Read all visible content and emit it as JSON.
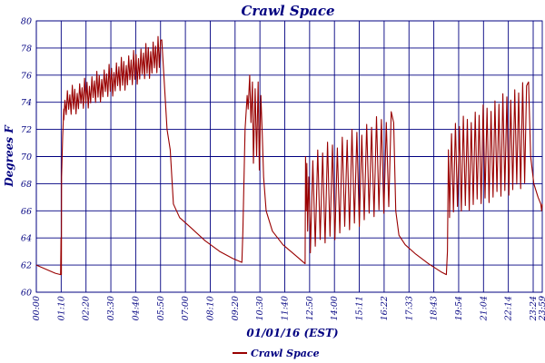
{
  "chart_data": {
    "type": "line",
    "title": "Crawl Space",
    "xlabel": "01/01/16 (EST)",
    "ylabel": "Degrees F",
    "ylim": [
      60,
      80
    ],
    "y_ticks": [
      "60",
      "62",
      "64",
      "66",
      "68",
      "70",
      "72",
      "74",
      "76",
      "78",
      "80"
    ],
    "x_ticks": [
      "00:00",
      "01:10",
      "02:20",
      "03:30",
      "04:40",
      "05:50",
      "07:00",
      "08:10",
      "09:20",
      "10:30",
      "11:40",
      "12:50",
      "14:00",
      "15:11",
      "16:22",
      "17:33",
      "18:43",
      "19:54",
      "21:04",
      "22:14",
      "23:24",
      "23:59"
    ],
    "x_unit": "hours",
    "xlim": [
      0,
      24
    ],
    "grid": true,
    "legend_position": "bottom-left",
    "series": [
      {
        "name": "Crawl Space",
        "color": "#990000",
        "segments": [
          {
            "kind": "points",
            "points": [
              [
                0,
                62.0
              ],
              [
                0.3,
                61.8
              ],
              [
                0.6,
                61.6
              ],
              [
                0.9,
                61.4
              ],
              [
                1.15,
                61.3
              ],
              [
                1.17,
                64.0
              ],
              [
                1.19,
                61.3
              ],
              [
                1.2,
                68.5
              ],
              [
                1.25,
                71.5
              ],
              [
                1.3,
                73.5
              ]
            ]
          },
          {
            "kind": "oscillate",
            "t0": 1.3,
            "t1": 5.95,
            "count": 40,
            "lo0": 73.0,
            "lo1": 76.5,
            "hi0": 74.5,
            "hi1": 78.6
          },
          {
            "kind": "points",
            "points": [
              [
                5.95,
                78.6
              ],
              [
                6.05,
                76.0
              ],
              [
                6.2,
                72.0
              ],
              [
                6.35,
                70.5
              ],
              [
                6.5,
                66.5
              ],
              [
                6.8,
                65.5
              ],
              [
                7.3,
                64.8
              ],
              [
                8.0,
                63.8
              ],
              [
                8.7,
                63.0
              ],
              [
                9.3,
                62.5
              ],
              [
                9.75,
                62.2
              ]
            ]
          },
          {
            "kind": "points",
            "points": [
              [
                9.8,
                64.5
              ],
              [
                9.9,
                72.0
              ],
              [
                10.0,
                74.5
              ],
              [
                10.05,
                73.5
              ],
              [
                10.12,
                76.0
              ],
              [
                10.18,
                72.5
              ],
              [
                10.25,
                75.5
              ],
              [
                10.3,
                69.5
              ],
              [
                10.38,
                75.0
              ],
              [
                10.45,
                70.0
              ],
              [
                10.52,
                75.5
              ],
              [
                10.58,
                69.0
              ],
              [
                10.65,
                74.5
              ],
              [
                10.72,
                71.5
              ],
              [
                10.78,
                68.5
              ],
              [
                10.9,
                66.0
              ],
              [
                11.2,
                64.5
              ],
              [
                11.7,
                63.5
              ],
              [
                12.3,
                62.7
              ],
              [
                12.75,
                62.1
              ]
            ]
          },
          {
            "kind": "points",
            "points": [
              [
                12.77,
                70.0
              ],
              [
                12.8,
                66.0
              ],
              [
                12.83,
                69.5
              ],
              [
                12.87,
                64.5
              ],
              [
                12.92,
                68.5
              ],
              [
                13.0,
                64.0
              ]
            ]
          },
          {
            "kind": "oscillate",
            "t0": 13.0,
            "t1": 16.95,
            "count": 17,
            "lo0": 63.2,
            "lo1": 66.5,
            "hi0": 70.0,
            "hi1": 73.2
          },
          {
            "kind": "points",
            "points": [
              [
                16.95,
                72.5
              ],
              [
                17.05,
                66.0
              ],
              [
                17.2,
                64.2
              ],
              [
                17.5,
                63.5
              ],
              [
                18.0,
                62.8
              ],
              [
                18.6,
                62.1
              ],
              [
                19.2,
                61.5
              ],
              [
                19.45,
                61.3
              ],
              [
                19.5,
                63.0
              ],
              [
                19.55,
                70.5
              ],
              [
                19.6,
                66.5
              ]
            ]
          },
          {
            "kind": "oscillate",
            "t0": 19.6,
            "t1": 23.35,
            "count": 20,
            "lo0": 65.8,
            "lo1": 68.0,
            "hi0": 72.0,
            "hi1": 75.3
          },
          {
            "kind": "points",
            "points": [
              [
                23.35,
                75.5
              ],
              [
                23.45,
                70.0
              ],
              [
                23.6,
                68.0
              ],
              [
                23.8,
                67.0
              ],
              [
                23.93,
                66.5
              ],
              [
                23.97,
                66.0
              ],
              [
                24.0,
                66.5
              ]
            ]
          }
        ]
      }
    ]
  }
}
